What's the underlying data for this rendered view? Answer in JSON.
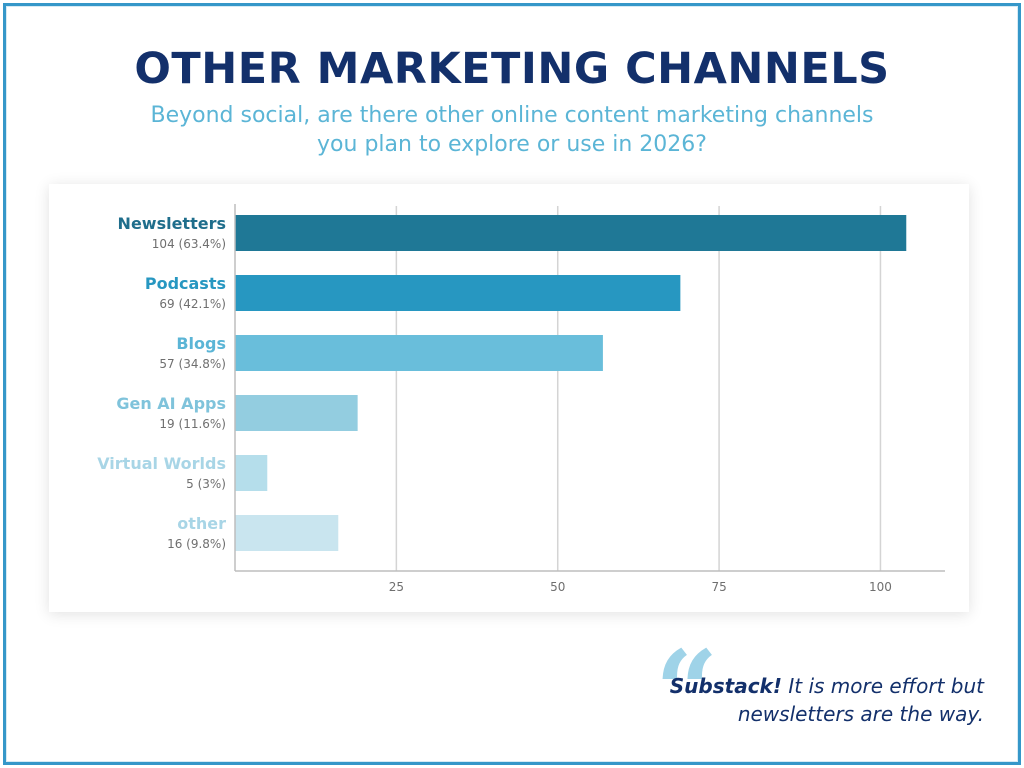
{
  "title": "OTHER MARKETING CHANNELS",
  "subtitle_line1": "Beyond social, are there other online content marketing channels",
  "subtitle_line2": "you plan to explore or use in 2026?",
  "quote": {
    "mark": "“",
    "emphasis": "Substack!",
    "line1_rest": " It is more effort but",
    "line2": "newsletters are the way."
  },
  "colors": {
    "title": "#13306b",
    "subtitle": "#5bb5d6",
    "frame": "#3597c9"
  },
  "chart_data": {
    "type": "bar",
    "orientation": "horizontal",
    "title": "OTHER MARKETING CHANNELS",
    "xlabel": "",
    "ylabel": "",
    "xlim": [
      0,
      110
    ],
    "xticks": [
      25,
      50,
      75,
      100
    ],
    "grid": true,
    "categories": [
      "Newsletters",
      "Podcasts",
      "Blogs",
      "Gen AI Apps",
      "Virtual Worlds",
      "other"
    ],
    "values": [
      104,
      69,
      57,
      19,
      5,
      16
    ],
    "value_labels": [
      "104 (63.4%)",
      "69 (42.1%)",
      "57 (34.8%)",
      "19 (11.6%)",
      "5 (3%)",
      "16 (9.8%)"
    ],
    "bar_colors": [
      "#1f7896",
      "#2797c1",
      "#69bedb",
      "#93cde0",
      "#b5deeb",
      "#c9e5ef"
    ],
    "label_colors": [
      "#1f6e8c",
      "#2797c1",
      "#5bb5d6",
      "#7fc3db",
      "#a8d5e6",
      "#a8d5e6"
    ]
  }
}
